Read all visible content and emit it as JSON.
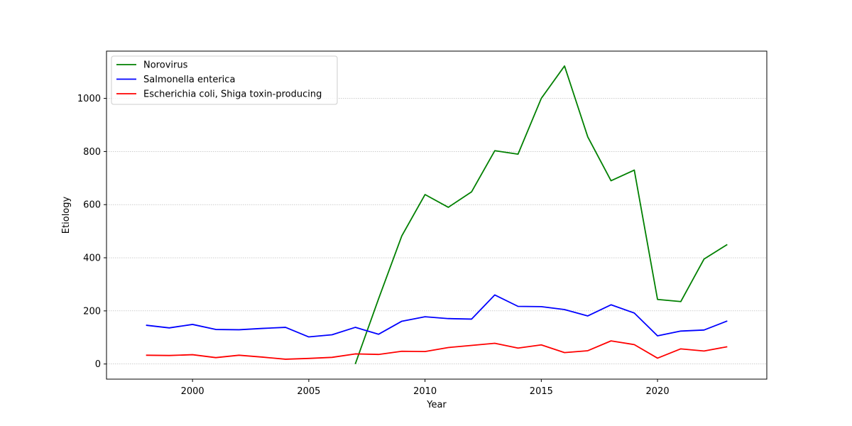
{
  "chart_data": {
    "type": "line",
    "title": "",
    "xlabel": "Year",
    "ylabel": "Etiology",
    "xlim": [
      1996.3,
      2024.7
    ],
    "ylim": [
      -57,
      1178
    ],
    "xticks": [
      2000,
      2005,
      2010,
      2015,
      2020
    ],
    "yticks": [
      0,
      200,
      400,
      600,
      800,
      1000
    ],
    "x_tick_labels": [
      "2000",
      "2005",
      "2010",
      "2015",
      "2020"
    ],
    "y_tick_labels": [
      "0",
      "200",
      "400",
      "600",
      "800",
      "1000"
    ],
    "grid": "horizontal",
    "legend_position": "top-left",
    "series": [
      {
        "name": "Norovirus",
        "color": "#008000",
        "x": [
          2007,
          2008,
          2009,
          2010,
          2011,
          2012,
          2013,
          2014,
          2015,
          2016,
          2017,
          2018,
          2019,
          2020,
          2021,
          2022,
          2023
        ],
        "values": [
          0,
          245,
          482,
          638,
          590,
          648,
          803,
          790,
          1000,
          1122,
          855,
          690,
          730,
          243,
          235,
          395,
          450
        ]
      },
      {
        "name": "Salmonella enterica",
        "color": "#0000ff",
        "x": [
          1998,
          1999,
          2000,
          2001,
          2002,
          2003,
          2004,
          2005,
          2006,
          2007,
          2008,
          2009,
          2010,
          2011,
          2012,
          2013,
          2014,
          2015,
          2016,
          2017,
          2018,
          2019,
          2020,
          2021,
          2022,
          2023
        ],
        "values": [
          146,
          136,
          149,
          130,
          129,
          134,
          138,
          102,
          110,
          138,
          112,
          161,
          178,
          171,
          169,
          260,
          217,
          216,
          205,
          181,
          223,
          192,
          106,
          124,
          128,
          162
        ]
      },
      {
        "name": "Escherichia coli, Shiga toxin-producing",
        "color": "#ff0000",
        "x": [
          1998,
          1999,
          2000,
          2001,
          2002,
          2003,
          2004,
          2005,
          2006,
          2007,
          2008,
          2009,
          2010,
          2011,
          2012,
          2013,
          2014,
          2015,
          2016,
          2017,
          2018,
          2019,
          2020,
          2021,
          2022,
          2023
        ],
        "values": [
          33,
          32,
          35,
          24,
          33,
          26,
          18,
          21,
          25,
          38,
          36,
          48,
          47,
          62,
          70,
          78,
          60,
          72,
          43,
          50,
          87,
          73,
          22,
          57,
          49,
          65
        ]
      }
    ]
  }
}
